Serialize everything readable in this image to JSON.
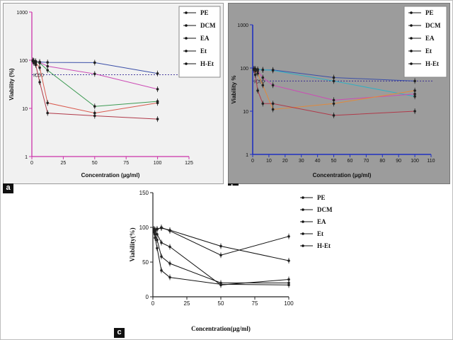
{
  "panels": [
    {
      "letter": "a",
      "chart_data": {
        "type": "line",
        "yscale": "log",
        "xlabel": "Concentration (µg/ml)",
        "ylabel": "Viability (%)",
        "xlim": [
          0,
          125
        ],
        "ylim": [
          1,
          1000
        ],
        "xticks": [
          0,
          25,
          50,
          75,
          100,
          125
        ],
        "yticks": [
          1,
          10,
          100,
          1000
        ],
        "grid": false,
        "legend": "top-right",
        "reference_line": {
          "label": "IC50",
          "y": 50
        },
        "series": [
          {
            "name": "PE",
            "color": "#3b4fa8",
            "x": [
              0.8,
              1.6,
              3.1,
              6.25,
              12.5,
              50,
              100
            ],
            "y": [
              97,
              95,
              94,
              92,
              90,
              89,
              53
            ]
          },
          {
            "name": "DCM",
            "color": "#cc4bb5",
            "x": [
              0.8,
              1.6,
              3.1,
              6.25,
              12.5,
              50,
              100
            ],
            "y": [
              99,
              97,
              95,
              90,
              75,
              52,
              25
            ]
          },
          {
            "name": "EA",
            "color": "#3c9a52",
            "x": [
              0.8,
              1.6,
              3.1,
              6.25,
              12.5,
              50,
              100
            ],
            "y": [
              98,
              96,
              93,
              88,
              62,
              11,
              14
            ]
          },
          {
            "name": "Et",
            "color": "#d95a4e",
            "x": [
              0.8,
              1.6,
              3.1,
              6.25,
              12.5,
              50,
              100
            ],
            "y": [
              96,
              92,
              88,
              70,
              13,
              8,
              13
            ]
          },
          {
            "name": "H-Et",
            "color": "#b03a4a",
            "x": [
              0.8,
              1.6,
              3.1,
              6.25,
              12.5,
              50,
              100
            ],
            "y": [
              95,
              88,
              80,
              35,
              8,
              7,
              6
            ]
          }
        ]
      }
    },
    {
      "letter": "b",
      "chart_data": {
        "type": "line",
        "yscale": "log",
        "xlabel": "Concentration (µg/ml)",
        "ylabel": "Viability %",
        "xlim": [
          0,
          110
        ],
        "ylim": [
          1,
          1000
        ],
        "xticks": [
          0,
          10,
          20,
          30,
          40,
          50,
          60,
          70,
          80,
          90,
          100,
          110
        ],
        "yticks": [
          1,
          10,
          100,
          1000
        ],
        "grid": false,
        "legend": "top-right",
        "reference_line": {
          "label": "IC50",
          "y": 50
        },
        "series": [
          {
            "name": "PE",
            "color": "#3b4fa8",
            "x": [
              0.8,
              1.6,
              3.1,
              6.25,
              12.5,
              50,
              100
            ],
            "y": [
              95,
              94,
              92,
              90,
              90,
              60,
              50
            ]
          },
          {
            "name": "DCM",
            "color": "#2fb0c4",
            "x": [
              0.8,
              1.6,
              3.1,
              6.25,
              12.5,
              50,
              100
            ],
            "y": [
              96,
              95,
              93,
              91,
              88,
              50,
              22
            ]
          },
          {
            "name": "EA",
            "color": "#cc4bb5",
            "x": [
              0.8,
              1.6,
              3.1,
              6.25,
              12.5,
              50,
              100
            ],
            "y": [
              93,
              90,
              85,
              60,
              40,
              18,
              25
            ]
          },
          {
            "name": "Et",
            "color": "#e08a3c",
            "x": [
              0.8,
              1.6,
              3.1,
              6.25,
              12.5,
              50,
              100
            ],
            "y": [
              92,
              85,
              75,
              40,
              11,
              15,
              30
            ]
          },
          {
            "name": "H-Et",
            "color": "#b03a4a",
            "x": [
              0.8,
              1.6,
              3.1,
              6.25,
              12.5,
              50,
              100
            ],
            "y": [
              90,
              70,
              30,
              15,
              15,
              8,
              10
            ]
          }
        ]
      }
    },
    {
      "letter": "c",
      "chart_data": {
        "type": "line",
        "yscale": "linear",
        "xlabel": "Concentration(µg/ml)",
        "ylabel": "Viability(%)",
        "xlim": [
          0,
          100
        ],
        "ylim": [
          0,
          150
        ],
        "xticks": [
          0,
          25,
          50,
          75,
          100
        ],
        "yticks": [
          0,
          50,
          100,
          150
        ],
        "grid": false,
        "legend": "top-right",
        "series": [
          {
            "name": "PE",
            "color": "#111111",
            "x": [
              0.8,
              1.6,
              3.1,
              6.25,
              12.5,
              50,
              100
            ],
            "y": [
              98,
              97,
              98,
              99,
              96,
              73,
              52
            ]
          },
          {
            "name": "DCM",
            "color": "#111111",
            "x": [
              0.8,
              1.6,
              3.1,
              6.25,
              12.5,
              50,
              100
            ],
            "y": [
              96,
              95,
              97,
              100,
              95,
              60,
              87
            ]
          },
          {
            "name": "EA",
            "color": "#111111",
            "x": [
              0.8,
              1.6,
              3.1,
              6.25,
              12.5,
              50,
              100
            ],
            "y": [
              97,
              94,
              90,
              78,
              72,
              17,
              25
            ]
          },
          {
            "name": "Et",
            "color": "#111111",
            "x": [
              0.8,
              1.6,
              3.1,
              6.25,
              12.5,
              50,
              100
            ],
            "y": [
              95,
              90,
              82,
              58,
              48,
              20,
              20
            ]
          },
          {
            "name": "H-Et",
            "color": "#111111",
            "x": [
              0.8,
              1.6,
              3.1,
              6.25,
              12.5,
              50,
              100
            ],
            "y": [
              93,
              85,
              70,
              38,
              28,
              18,
              17
            ]
          }
        ]
      }
    }
  ]
}
